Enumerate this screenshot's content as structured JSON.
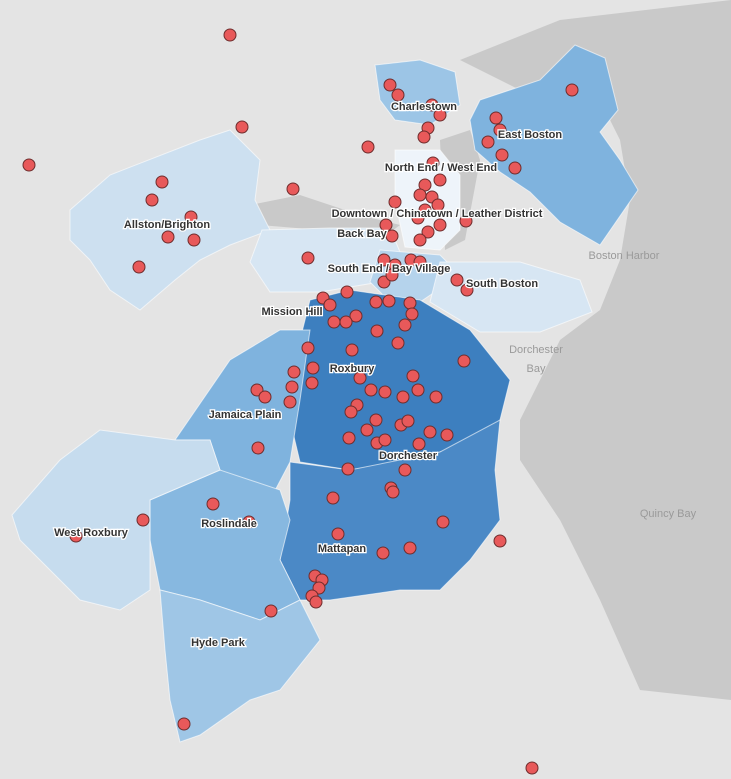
{
  "map": {
    "neighborhoods": [
      "Charlestown",
      "East Boston",
      "North End / West End",
      "Downtown / Chinatown / Leather District",
      "Allston/Brighton",
      "Back Bay",
      "South End / Bay Village",
      "South Boston",
      "Mission Hill",
      "Roxbury",
      "Jamaica Plain",
      "Dorchester",
      "West Roxbury",
      "Roslindale",
      "Mattapan",
      "Hyde Park"
    ],
    "water_labels": [
      [
        "Boston Harbor"
      ],
      [
        "Dorchester",
        "Bay"
      ],
      [
        "Quincy Bay"
      ]
    ]
  }
}
